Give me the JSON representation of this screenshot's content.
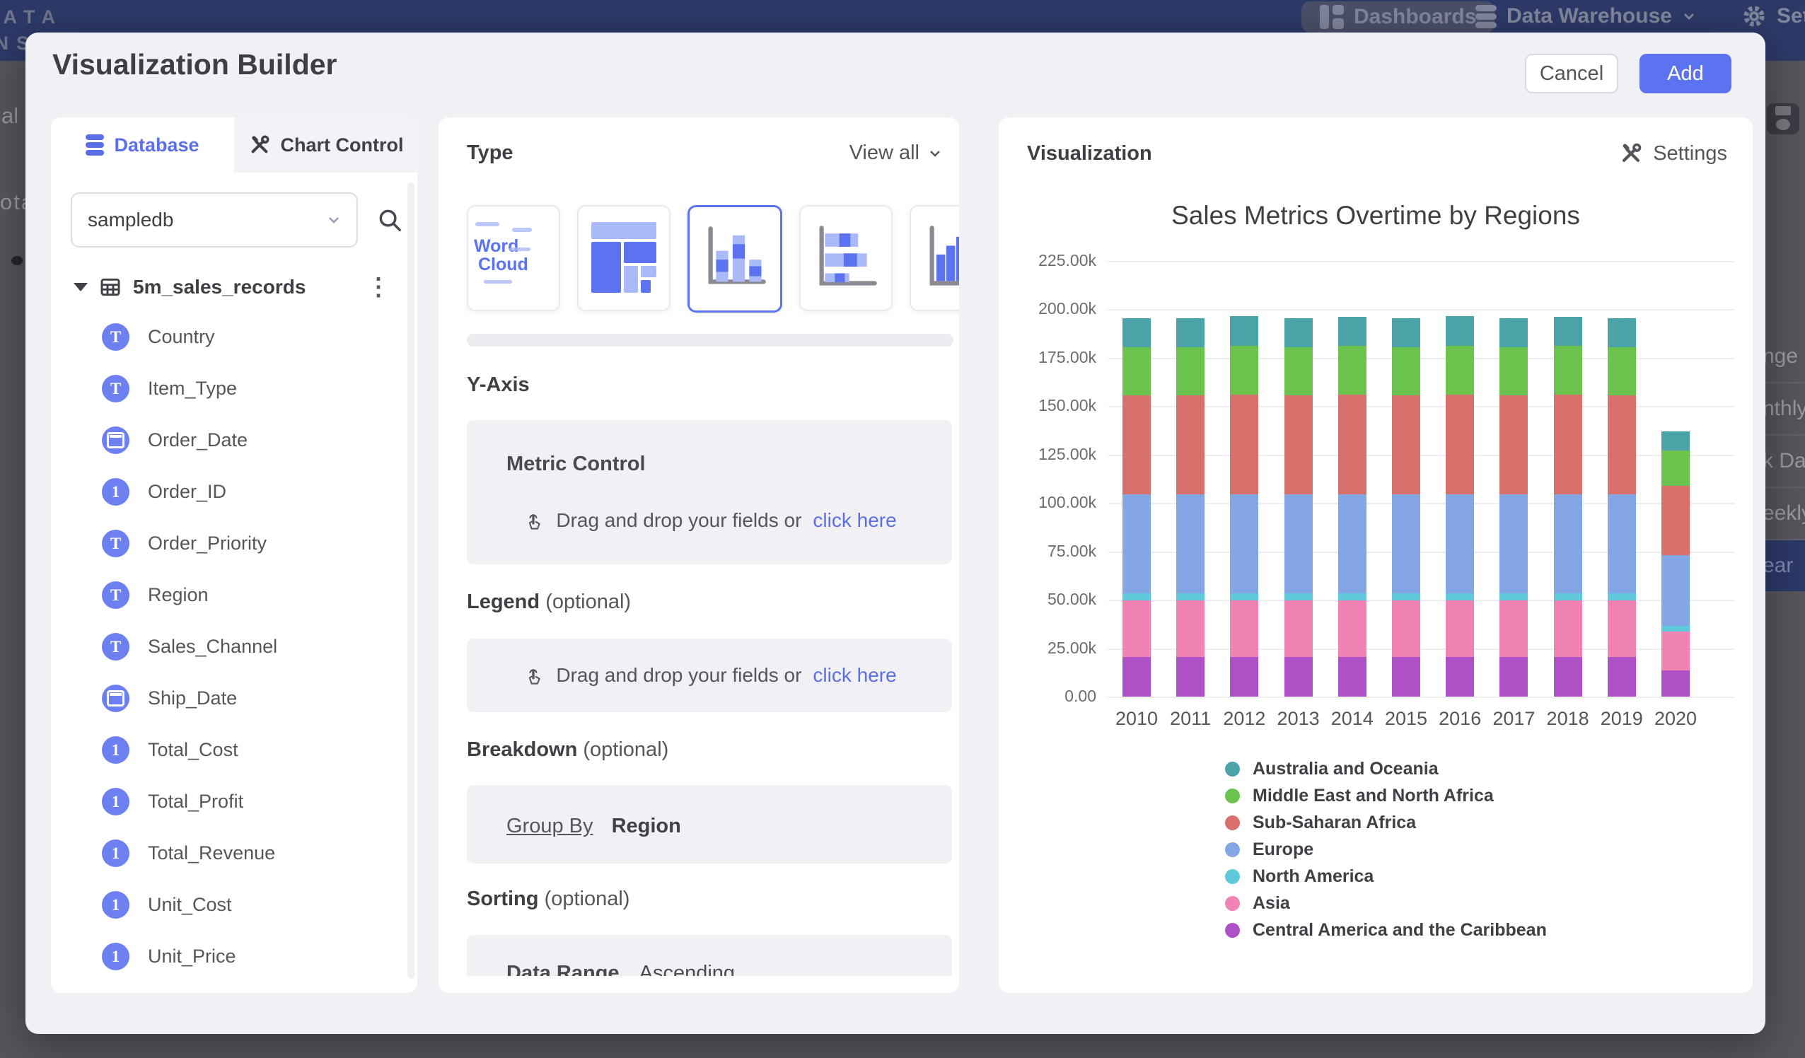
{
  "navbar": {
    "logo_line1": "DATA",
    "logo_line2": "INSIDER",
    "items": [
      {
        "label": "Dashboards",
        "icon": "dashboard-grid-icon",
        "active": true
      },
      {
        "label": "Data Warehouse",
        "icon": "database-icon",
        "has_chevron": true
      },
      {
        "label": "Settings",
        "icon": "gear-icon"
      }
    ]
  },
  "background": {
    "left_fragments": [
      "al",
      "ota"
    ],
    "right_menu_items": [
      {
        "label": "nge"
      },
      {
        "label": "nthly"
      },
      {
        "label": "k Date"
      },
      {
        "label": "eekly"
      },
      {
        "label": "ear",
        "highlighted": true
      }
    ]
  },
  "modal": {
    "title": "Visualization Builder",
    "cancel_label": "Cancel",
    "add_label": "Add"
  },
  "sidebar": {
    "tabs": [
      {
        "label": "Database",
        "icon": "database-icon",
        "active": true
      },
      {
        "label": "Chart Control",
        "icon": "tools-icon",
        "active": false
      }
    ],
    "database_select": {
      "value": "sampledb"
    },
    "table": {
      "name": "5m_sales_records"
    },
    "fields": [
      {
        "name": "Country",
        "type": "text"
      },
      {
        "name": "Item_Type",
        "type": "text"
      },
      {
        "name": "Order_Date",
        "type": "date"
      },
      {
        "name": "Order_ID",
        "type": "number"
      },
      {
        "name": "Order_Priority",
        "type": "text"
      },
      {
        "name": "Region",
        "type": "text"
      },
      {
        "name": "Sales_Channel",
        "type": "text"
      },
      {
        "name": "Ship_Date",
        "type": "date"
      },
      {
        "name": "Total_Cost",
        "type": "number"
      },
      {
        "name": "Total_Profit",
        "type": "number"
      },
      {
        "name": "Total_Revenue",
        "type": "number"
      },
      {
        "name": "Unit_Cost",
        "type": "number"
      },
      {
        "name": "Unit_Price",
        "type": "number"
      }
    ]
  },
  "builder": {
    "type_section": {
      "title": "Type",
      "view_all_label": "View all",
      "chart_types": [
        {
          "name": "word-cloud",
          "label_lines": [
            "Word",
            "Cloud"
          ]
        },
        {
          "name": "treemap"
        },
        {
          "name": "stacked-column",
          "selected": true
        },
        {
          "name": "stacked-bar"
        },
        {
          "name": "column"
        }
      ]
    },
    "y_axis": {
      "title": "Y-Axis",
      "box_label": "Metric Control",
      "drop_text": "Drag and drop your fields or",
      "drop_link": "click here"
    },
    "legend": {
      "title": "Legend",
      "optional": "(optional)",
      "drop_text": "Drag and drop your fields or",
      "drop_link": "click here"
    },
    "breakdown": {
      "title": "Breakdown",
      "optional": "(optional)",
      "group_by_label": "Group By",
      "group_by_value": "Region"
    },
    "sorting": {
      "title": "Sorting",
      "optional": "(optional)",
      "row_label": "Data Range",
      "row_value": "Ascending"
    }
  },
  "visualization": {
    "title": "Visualization",
    "settings_label": "Settings"
  },
  "colors": {
    "accent": "#5b73f0",
    "link": "#5b6fe8",
    "field_icon": "#6d80f2",
    "navbar": "#2d3a68"
  },
  "chart_data": {
    "type": "bar",
    "stacked": true,
    "title": "Sales Metrics Overtime by Regions",
    "xlabel": "",
    "ylabel": "",
    "ylim": [
      0,
      225000
    ],
    "grid": true,
    "legend_position": "bottom-left",
    "y_ticks": [
      "225.00k",
      "200.00k",
      "175.00k",
      "150.00k",
      "125.00k",
      "100.00k",
      "75.00k",
      "50.00k",
      "25.00k",
      "0.00"
    ],
    "categories": [
      "2010",
      "2011",
      "2012",
      "2013",
      "2014",
      "2015",
      "2016",
      "2017",
      "2018",
      "2019",
      "2020"
    ],
    "series": [
      {
        "name": "Australia and Oceania",
        "color": "#4ba3a8",
        "values": [
          15000,
          15000,
          15500,
          15000,
          15000,
          15000,
          15500,
          15000,
          15300,
          15000,
          10000
        ]
      },
      {
        "name": "Middle East and North Africa",
        "color": "#6bc24d",
        "values": [
          25000,
          25000,
          25000,
          25000,
          25000,
          25000,
          25000,
          25000,
          25000,
          25000,
          18000
        ]
      },
      {
        "name": "Sub-Saharan Africa",
        "color": "#d8716c",
        "values": [
          51000,
          51000,
          51500,
          51000,
          51500,
          51000,
          51500,
          51000,
          51500,
          51000,
          36000
        ]
      },
      {
        "name": "Europe",
        "color": "#83a6e4",
        "values": [
          51000,
          51000,
          51000,
          51000,
          51000,
          51000,
          51000,
          51000,
          51000,
          51000,
          36500
        ]
      },
      {
        "name": "North America",
        "color": "#5fc8db",
        "values": [
          4000,
          4000,
          4000,
          4000,
          4000,
          4000,
          4000,
          4000,
          4000,
          4000,
          3000
        ]
      },
      {
        "name": "Asia",
        "color": "#f083b4",
        "values": [
          29000,
          29000,
          29000,
          29000,
          29000,
          29000,
          29000,
          29000,
          29000,
          29000,
          20000
        ]
      },
      {
        "name": "Central America and the Caribbean",
        "color": "#ae51c6",
        "values": [
          20500,
          20500,
          20500,
          20500,
          20500,
          20500,
          20500,
          20500,
          20500,
          20500,
          13500
        ]
      }
    ],
    "note": "series listed top-of-stack first; bars stack bottom-up in reverse order"
  }
}
